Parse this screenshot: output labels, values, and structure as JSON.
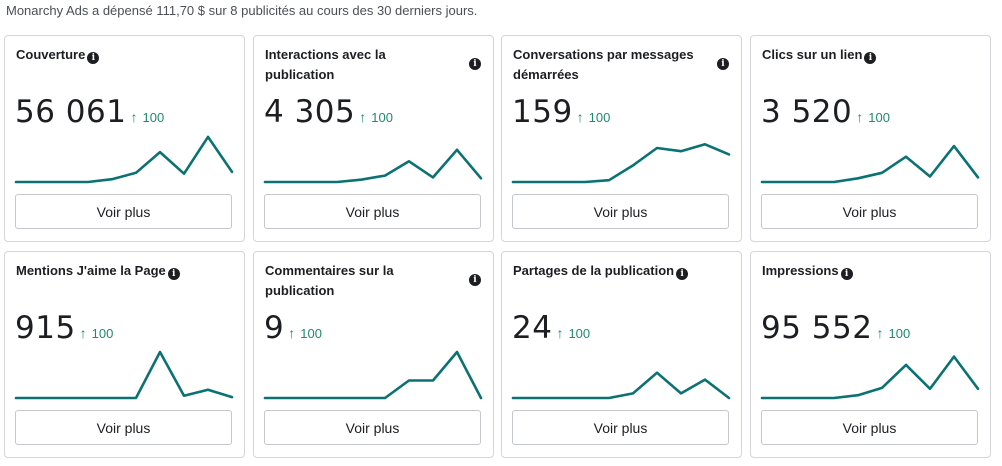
{
  "summary": "Monarchy Ads a dépensé 111,70 $ sur 8 publicités au cours des 30 derniers jours.",
  "see_more_label": "Voir plus",
  "info_icon_glyph": "i",
  "delta_arrow": "↑",
  "colors": {
    "accent": "#0b7273",
    "delta": "#1e8a6e",
    "border": "#d3d6db"
  },
  "cards": [
    {
      "title": "Couverture",
      "value": "56 061",
      "delta": "100",
      "trend": [
        0,
        0,
        0,
        0,
        0.06,
        0.2,
        0.65,
        0.18,
        0.98,
        0.22
      ]
    },
    {
      "title": "Interactions avec la publication",
      "value": "4 305",
      "delta": "100",
      "trend": [
        0,
        0,
        0,
        0,
        0.05,
        0.14,
        0.45,
        0.1,
        0.7,
        0.08
      ]
    },
    {
      "title": "Conversations par messages démarrées",
      "value": "159",
      "delta": "100",
      "trend": [
        0,
        0,
        0,
        0,
        0.04,
        0.36,
        0.74,
        0.67,
        0.82,
        0.6
      ]
    },
    {
      "title": "Clics sur un lien",
      "value": "3 520",
      "delta": "100",
      "trend": [
        0,
        0,
        0,
        0,
        0.08,
        0.2,
        0.55,
        0.12,
        0.78,
        0.1
      ]
    },
    {
      "title": "Mentions J'aime la Page",
      "value": "915",
      "delta": "100",
      "trend": [
        0,
        0,
        0,
        0,
        0,
        0,
        1.0,
        0.05,
        0.18,
        0.02
      ]
    },
    {
      "title": "Commentaires sur la publication",
      "value": "9",
      "delta": "100",
      "trend": [
        0,
        0,
        0,
        0,
        0,
        0,
        0.38,
        0.38,
        1.0,
        0
      ]
    },
    {
      "title": "Partages de la publication",
      "value": "24",
      "delta": "100",
      "trend": [
        0,
        0,
        0,
        0,
        0,
        0.1,
        0.55,
        0.1,
        0.4,
        0
      ]
    },
    {
      "title": "Impressions",
      "value": "95 552",
      "delta": "100",
      "trend": [
        0,
        0,
        0,
        0,
        0.06,
        0.22,
        0.72,
        0.2,
        0.9,
        0.2
      ]
    }
  ]
}
